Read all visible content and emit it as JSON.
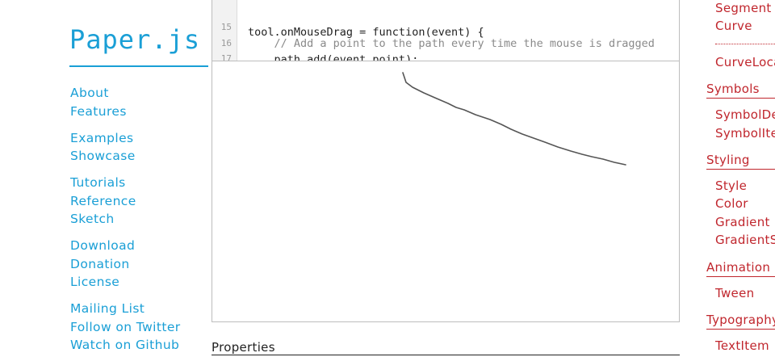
{
  "logo": "Paper.js",
  "nav": [
    [
      "About",
      "Features"
    ],
    [
      "Examples",
      "Showcase"
    ],
    [
      "Tutorials",
      "Reference",
      "Sketch"
    ],
    [
      "Download",
      "Donation",
      "License"
    ],
    [
      "Mailing List",
      "Follow on Twitter",
      "Watch on Github"
    ]
  ],
  "code": {
    "lines": [
      {
        "number": "",
        "text": "tool.onMouseDrag = function(event) {"
      },
      {
        "number": "15",
        "text": "    // Add a point to the path every time the mouse is dragged"
      },
      {
        "number": "16",
        "text": "    path.add(event.point);"
      },
      {
        "number": "17",
        "text": "}"
      }
    ]
  },
  "properties_heading": "Properties",
  "reference": {
    "segment": "Segment",
    "curve": "Curve",
    "curve_location": "CurveLocation",
    "symbols_heading": "Symbols",
    "symbol_definition": "SymbolDefinition",
    "symbol_item": "SymbolItem",
    "styling_heading": "Styling",
    "style": "Style",
    "color": "Color",
    "gradient": "Gradient",
    "gradient_stop": "GradientStop",
    "animation_heading": "Animation",
    "tween": "Tween",
    "typography_heading": "Typography",
    "text_item": "TextItem"
  },
  "colors": {
    "nav_blue": "#1a9fd6",
    "reference_red": "#c0262d",
    "stroke_gray": "#555555"
  }
}
